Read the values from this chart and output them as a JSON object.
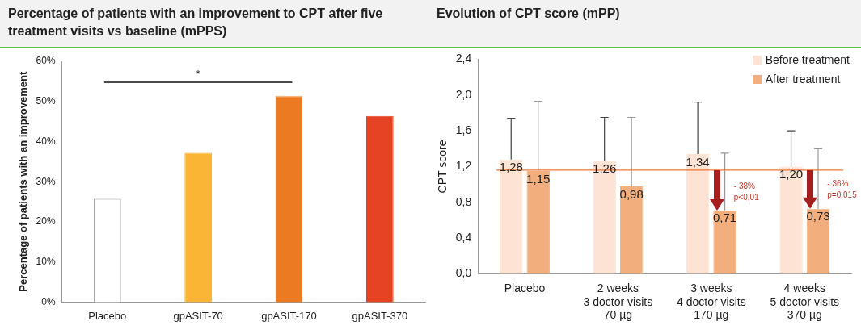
{
  "chart_data": [
    {
      "type": "bar",
      "title": "Percentage of patients with an improvement to CPT after five treatment visits vs baseline (mPPS)",
      "ylabel": "Percentage of patients with an improvement",
      "categories": [
        "Placebo",
        "gpASIT-70",
        "gpASIT-170",
        "gpASIT-370"
      ],
      "values": [
        25.7,
        37.2,
        51.3,
        46.4
      ],
      "colors": [
        "#ffffff",
        "#fbb535",
        "#ec7a23",
        "#e54323"
      ],
      "ylim": [
        0,
        60
      ],
      "yticks": [
        {
          "value": 0,
          "label": "0%"
        },
        {
          "value": 10,
          "label": "10%"
        },
        {
          "value": 20,
          "label": "20%"
        },
        {
          "value": 30,
          "label": "30%"
        },
        {
          "value": 40,
          "label": "40%"
        },
        {
          "value": 50,
          "label": "50%"
        },
        {
          "value": 60,
          "label": "60%"
        }
      ],
      "grid": false,
      "legend": false,
      "annotations": [
        "*"
      ]
    },
    {
      "type": "bar",
      "title": "Evolution of CPT score (mPP)",
      "ylabel": "CPT score",
      "categories": [
        "Placebo",
        "2 weeks\n3 doctor visits\n70 µg",
        "3 weeks\n4 doctor visits\n170 µg",
        "4 weeks\n5 doctor visits\n370 µg"
      ],
      "series": [
        {
          "name": "Before treatment",
          "color": "#fde3d3",
          "values": [
            1.28,
            1.26,
            1.34,
            1.2
          ],
          "value_labels": [
            "1,28",
            "1,26",
            "1,34",
            "1,20"
          ],
          "errors": [
            [
              1.28,
              1.74
            ],
            [
              1.26,
              1.75
            ],
            [
              1.34,
              1.92
            ],
            [
              1.2,
              1.6
            ]
          ]
        },
        {
          "name": "After treatment",
          "color": "#f2ae7c",
          "values": [
            1.15,
            0.98,
            0.71,
            0.73
          ],
          "value_labels": [
            "1,15",
            "0,98",
            "0,71",
            "0,73"
          ],
          "errors": [
            [
              1.15,
              1.93
            ],
            [
              0.98,
              1.75
            ],
            [
              0.71,
              1.35
            ],
            [
              0.73,
              1.4
            ]
          ]
        }
      ],
      "ylim": [
        0,
        2.4
      ],
      "yticks": [
        {
          "value": 0,
          "label": "0,0"
        },
        {
          "value": 0.4,
          "label": "0,4"
        },
        {
          "value": 0.8,
          "label": "0,8"
        },
        {
          "value": 1.2,
          "label": "1,2"
        },
        {
          "value": 1.6,
          "label": "1,6"
        },
        {
          "value": 2,
          "label": "2,0"
        },
        {
          "value": 2.4,
          "label": "2,4"
        }
      ],
      "grid": false,
      "legend": "top right",
      "ref_lines": [
        {
          "axis": "y",
          "value": 1.16,
          "color": "#e8763a"
        }
      ],
      "annotations": [
        {
          "text": "- 38%\np<0,01",
          "x": "3 weeks\n4 doctor visits\n170 µg",
          "y": 0.95
        },
        {
          "text": "- 36%\np=0,015",
          "x": "4 weeks\n5 doctor visits\n370 µg",
          "y": 0.98
        }
      ]
    }
  ]
}
